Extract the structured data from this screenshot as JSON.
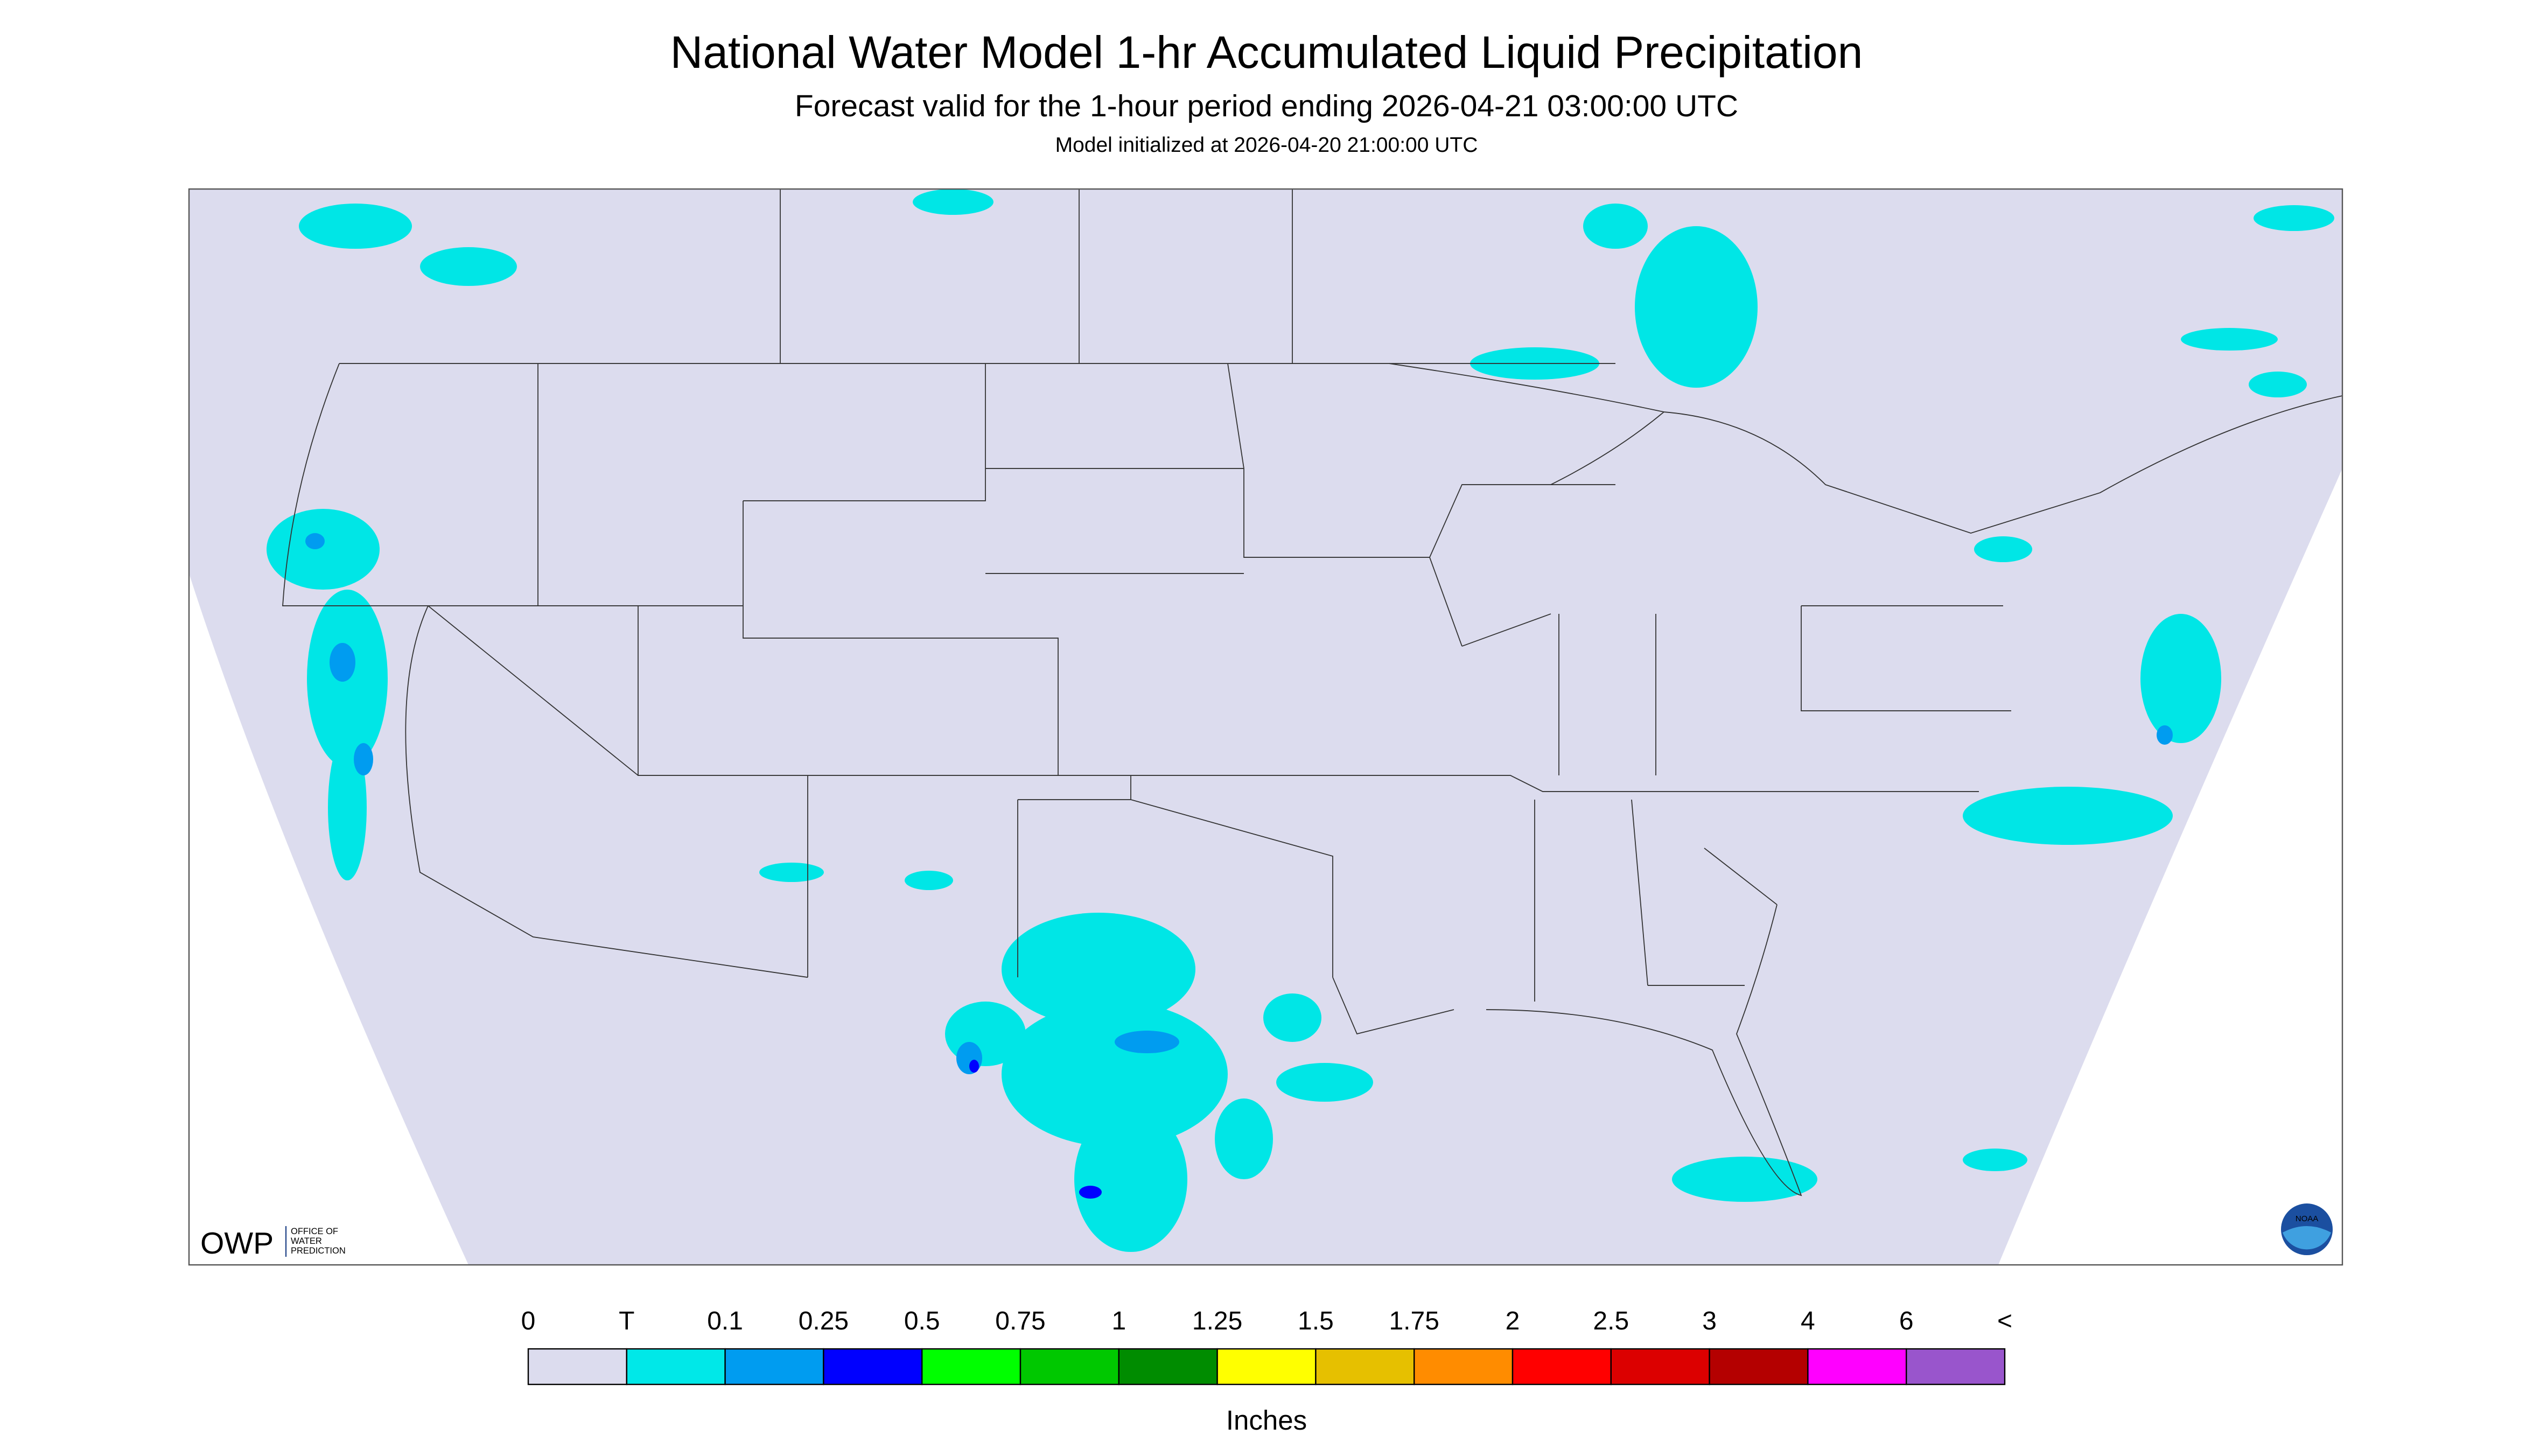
{
  "header": {
    "title": "National Water Model 1-hr Accumulated Liquid Precipitation",
    "subtitle": "Forecast valid for the 1-hour period ending 2026-04-21 03:00:00 UTC",
    "init": "Model initialized at 2026-04-20 21:00:00 UTC"
  },
  "legend": {
    "labels": [
      "0",
      "T",
      "0.1",
      "0.25",
      "0.5",
      "0.75",
      "1",
      "1.25",
      "1.5",
      "1.75",
      "2",
      "2.5",
      "3",
      "4",
      "6",
      "<"
    ],
    "colors": [
      "#dcdcee",
      "#00e8e8",
      "#009cf0",
      "#0000ff",
      "#00ff00",
      "#00c800",
      "#008c00",
      "#ffff00",
      "#e6c000",
      "#ff8c00",
      "#ff0000",
      "#dc0000",
      "#b40000",
      "#ff00ff",
      "#9955cc"
    ],
    "unit": "Inches"
  },
  "logo": {
    "acronym": "OWP",
    "text": [
      "OFFICE OF",
      "WATER",
      "PREDICTION"
    ],
    "badge": "NOAA"
  }
}
